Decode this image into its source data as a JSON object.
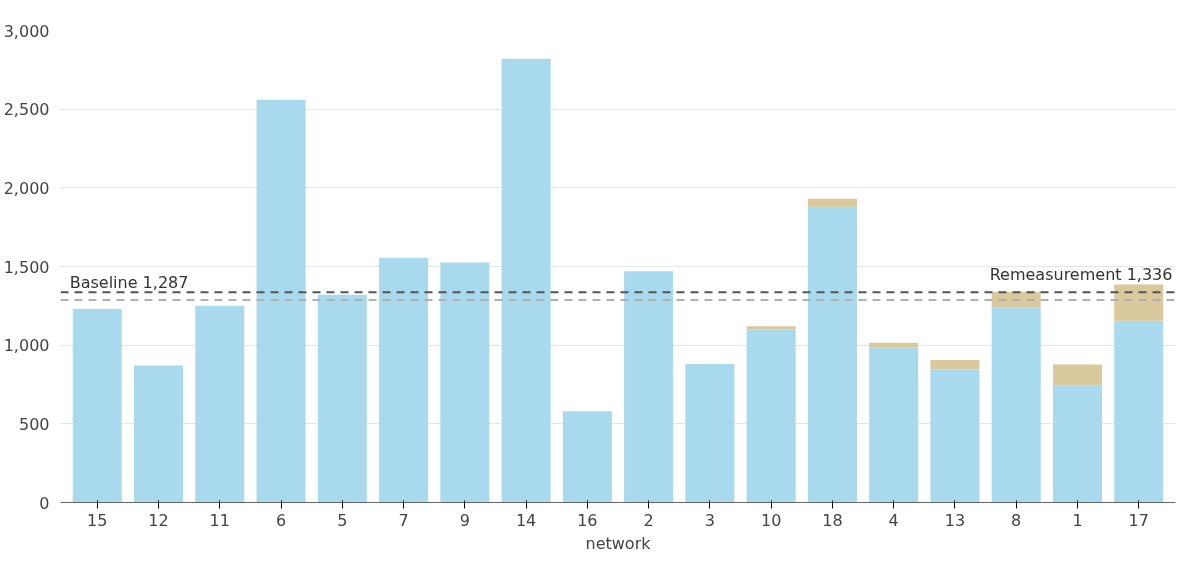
{
  "chart_data": {
    "type": "bar",
    "stacked": true,
    "xlabel": "network",
    "categories": [
      "15",
      "12",
      "11",
      "6",
      "5",
      "7",
      "9",
      "14",
      "16",
      "2",
      "3",
      "10",
      "18",
      "4",
      "13",
      "8",
      "1",
      "17"
    ],
    "series": [
      {
        "color": "#a9d9ec",
        "values": [
          1230,
          871,
          1250,
          2560,
          1320,
          1555,
          1525,
          2820,
          580,
          1470,
          880,
          1100,
          1880,
          985,
          845,
          1240,
          742,
          1155
        ]
      },
      {
        "color": "#d9c99c",
        "values": [
          null,
          null,
          null,
          null,
          null,
          null,
          null,
          null,
          null,
          null,
          null,
          20,
          50,
          30,
          60,
          100,
          135,
          230
        ]
      }
    ],
    "ylim": [
      0,
      3000
    ],
    "yticks": [
      0,
      {
        "value": 500,
        "label": "500"
      },
      {
        "value": 1000,
        "label": "1,000"
      },
      {
        "value": 1500,
        "label": "1,500"
      },
      {
        "value": 2000,
        "label": "2,000"
      },
      {
        "value": 2500,
        "label": "2,500"
      },
      {
        "value": 3000,
        "label": "3,000"
      }
    ],
    "ref_lines": [
      {
        "axis": "y",
        "value": 1287,
        "label": "Baseline 1,287",
        "color": "#b0b0b0",
        "line_style": "dashed"
      },
      {
        "axis": "y",
        "value": 1336,
        "label": "Remeasurement 1,336",
        "color": "#555555",
        "line_style": "dashed"
      }
    ],
    "grid": "y"
  }
}
